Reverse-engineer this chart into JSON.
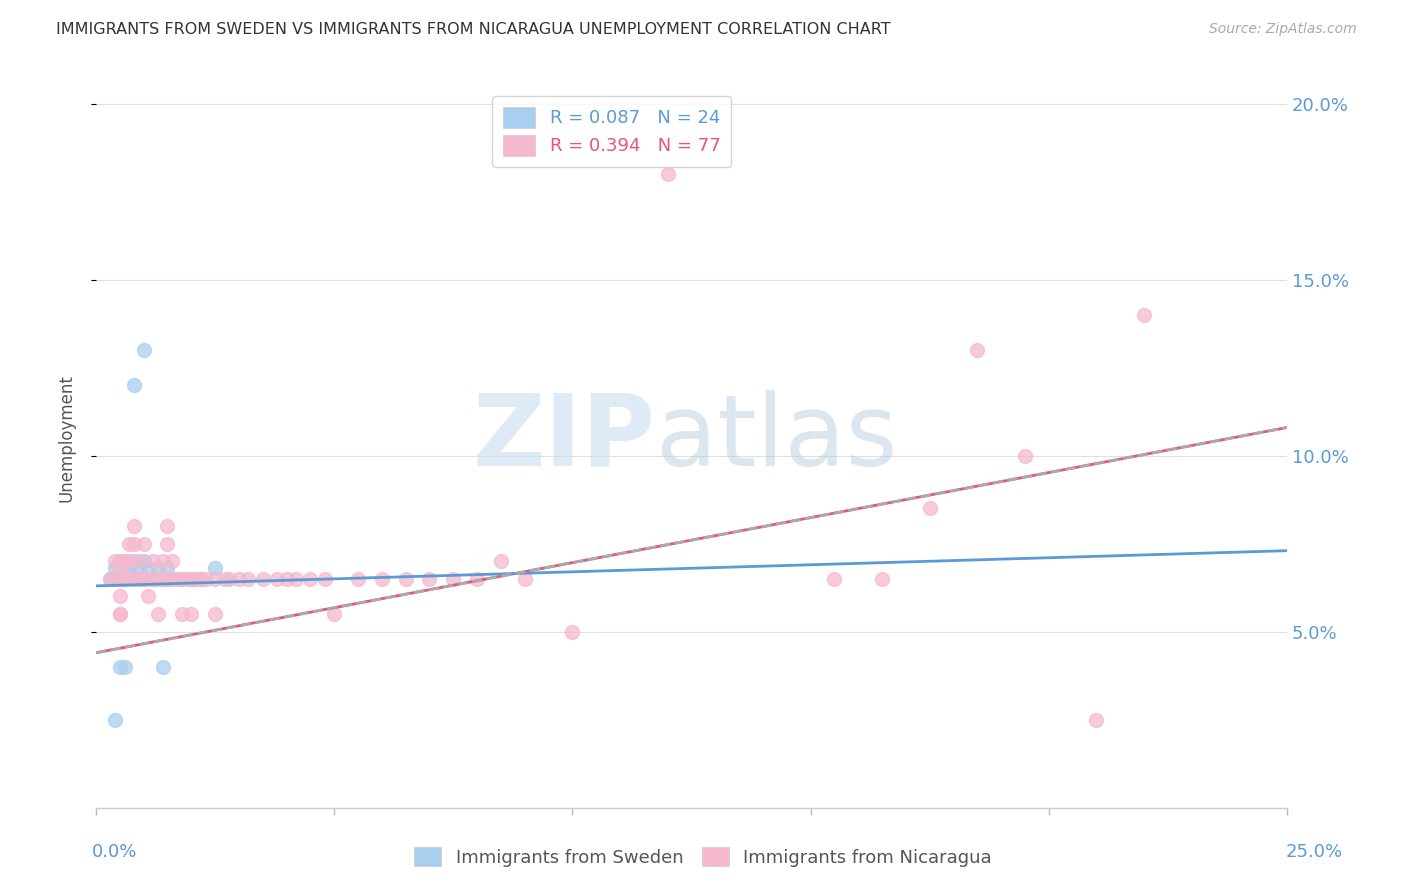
{
  "title": "IMMIGRANTS FROM SWEDEN VS IMMIGRANTS FROM NICARAGUA UNEMPLOYMENT CORRELATION CHART",
  "source": "Source: ZipAtlas.com",
  "ylabel": "Unemployment",
  "sweden_color": "#a8cff0",
  "nicaragua_color": "#f5b8ce",
  "sweden_line_color": "#5b9bd5",
  "nicaragua_line_color": "#e8547a",
  "trendline_dash_color": "#aaaaaa",
  "background_color": "#ffffff",
  "grid_color": "#e0e0e0",
  "xlim": [
    0.0,
    0.25
  ],
  "ylim": [
    0.0,
    0.21
  ],
  "ytick_vals": [
    0.05,
    0.1,
    0.15,
    0.2
  ],
  "ytick_labels": [
    "5.0%",
    "10.0%",
    "15.0%",
    "20.0%"
  ],
  "xtick_vals": [
    0.0,
    0.05,
    0.1,
    0.15,
    0.2,
    0.25
  ],
  "sweden_R": "0.087",
  "sweden_N": "24",
  "nicaragua_R": "0.394",
  "nicaragua_N": "77",
  "sweden_scatter_x": [
    0.003,
    0.004,
    0.005,
    0.005,
    0.006,
    0.007,
    0.007,
    0.008,
    0.008,
    0.009,
    0.009,
    0.01,
    0.01,
    0.011,
    0.012,
    0.013,
    0.014,
    0.015,
    0.015,
    0.016,
    0.018,
    0.02,
    0.022,
    0.025
  ],
  "sweden_scatter_y": [
    0.065,
    0.068,
    0.07,
    0.065,
    0.065,
    0.068,
    0.068,
    0.07,
    0.065,
    0.068,
    0.065,
    0.07,
    0.065,
    0.068,
    0.065,
    0.068,
    0.065,
    0.068,
    0.065,
    0.065,
    0.065,
    0.065,
    0.065,
    0.068
  ],
  "sweden_outliers_x": [
    0.004,
    0.005,
    0.006,
    0.008,
    0.01,
    0.014
  ],
  "sweden_outliers_y": [
    0.025,
    0.04,
    0.04,
    0.12,
    0.13,
    0.04
  ],
  "nicaragua_scatter_x": [
    0.003,
    0.004,
    0.004,
    0.005,
    0.005,
    0.005,
    0.005,
    0.005,
    0.005,
    0.005,
    0.006,
    0.006,
    0.006,
    0.007,
    0.007,
    0.007,
    0.008,
    0.008,
    0.008,
    0.009,
    0.009,
    0.009,
    0.01,
    0.01,
    0.01,
    0.011,
    0.011,
    0.012,
    0.012,
    0.013,
    0.013,
    0.014,
    0.014,
    0.015,
    0.015,
    0.015,
    0.016,
    0.016,
    0.017,
    0.018,
    0.018,
    0.019,
    0.02,
    0.02,
    0.021,
    0.022,
    0.023,
    0.025,
    0.025,
    0.027,
    0.028,
    0.03,
    0.032,
    0.035,
    0.038,
    0.04,
    0.042,
    0.045,
    0.048,
    0.05,
    0.055,
    0.06,
    0.065,
    0.07,
    0.075,
    0.08,
    0.085,
    0.09,
    0.1,
    0.12,
    0.155,
    0.165,
    0.175,
    0.185,
    0.195,
    0.21,
    0.22
  ],
  "nicaragua_scatter_y": [
    0.065,
    0.07,
    0.065,
    0.07,
    0.068,
    0.065,
    0.065,
    0.06,
    0.055,
    0.055,
    0.07,
    0.065,
    0.065,
    0.075,
    0.07,
    0.065,
    0.08,
    0.075,
    0.065,
    0.07,
    0.065,
    0.065,
    0.075,
    0.065,
    0.065,
    0.065,
    0.06,
    0.07,
    0.065,
    0.065,
    0.055,
    0.07,
    0.065,
    0.08,
    0.075,
    0.065,
    0.07,
    0.065,
    0.065,
    0.065,
    0.055,
    0.065,
    0.065,
    0.055,
    0.065,
    0.065,
    0.065,
    0.065,
    0.055,
    0.065,
    0.065,
    0.065,
    0.065,
    0.065,
    0.065,
    0.065,
    0.065,
    0.065,
    0.065,
    0.055,
    0.065,
    0.065,
    0.065,
    0.065,
    0.065,
    0.065,
    0.07,
    0.065,
    0.05,
    0.18,
    0.065,
    0.065,
    0.085,
    0.13,
    0.1,
    0.025,
    0.14
  ],
  "sweden_line_x0": 0.0,
  "sweden_line_x1": 0.25,
  "sweden_line_y0": 0.063,
  "sweden_line_y1": 0.073,
  "nicaragua_line_x0": 0.0,
  "nicaragua_line_x1": 0.25,
  "nicaragua_line_y0": 0.044,
  "nicaragua_line_y1": 0.108,
  "watermark_zip": "ZIP",
  "watermark_atlas": "atlas"
}
